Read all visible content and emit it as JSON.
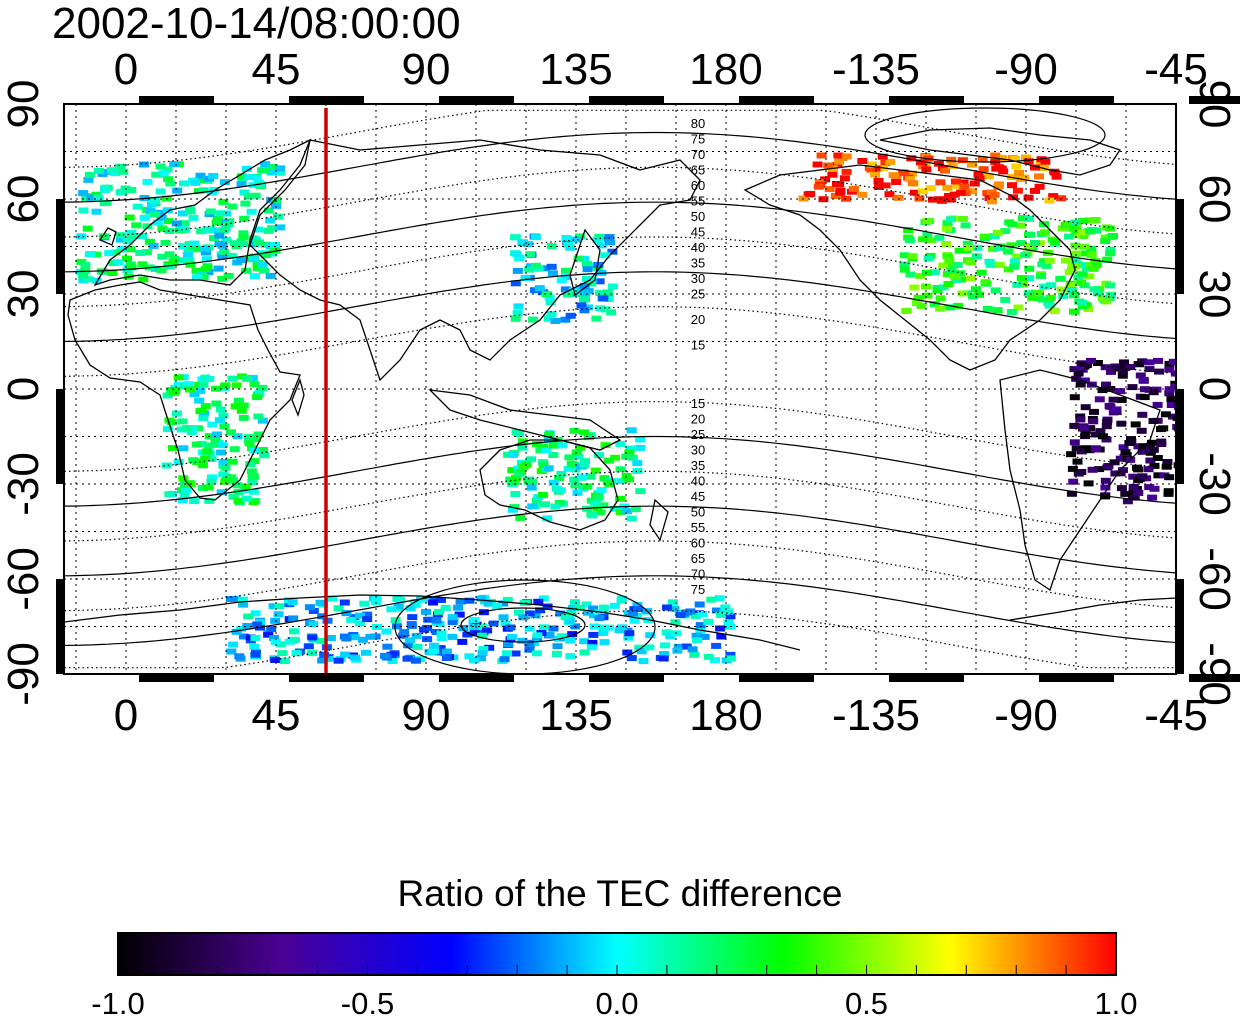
{
  "title": "2002-10-14/08:00:00",
  "colorbar": {
    "label": "Ratio of the TEC difference",
    "ticks": [
      "-1.0",
      "-0.5",
      "0.0",
      "0.5",
      "1.0"
    ],
    "stops": [
      "#000000",
      "#4b0096",
      "#0000ff",
      "#00ffff",
      "#00ff00",
      "#ffff00",
      "#ff0000"
    ]
  },
  "map": {
    "lon_ticks": [
      "0",
      "45",
      "90",
      "135",
      "180",
      "-135",
      "-90",
      "-45"
    ],
    "lat_ticks": [
      "90",
      "60",
      "30",
      "0",
      "-30",
      "-60",
      "-90"
    ],
    "marker_longitude": 60,
    "marker_color": "#cc0000",
    "contour_labels_north": [
      "80",
      "75",
      "70",
      "65",
      "60",
      "55",
      "50",
      "45",
      "40",
      "35",
      "30",
      "25",
      "20",
      "15"
    ],
    "contour_labels_south": [
      "15",
      "20",
      "25",
      "30",
      "35",
      "40",
      "45",
      "50",
      "55",
      "60",
      "65",
      "70",
      "75"
    ],
    "data_regions": [
      {
        "name": "europe",
        "lon": [
          -15,
          45
        ],
        "lat": [
          35,
          72
        ],
        "ratio": 0.1
      },
      {
        "name": "east-asia",
        "lon": [
          115,
          145
        ],
        "lat": [
          22,
          50
        ],
        "ratio": 0.0
      },
      {
        "name": "north-america",
        "lon": [
          -128,
          -65
        ],
        "lat": [
          25,
          55
        ],
        "ratio": 0.3
      },
      {
        "name": "arctic-canada",
        "lon": [
          -160,
          -80
        ],
        "lat": [
          60,
          75
        ],
        "ratio": 0.95
      },
      {
        "name": "australia",
        "lon": [
          113,
          153
        ],
        "lat": [
          -40,
          -12
        ],
        "ratio": 0.15
      },
      {
        "name": "south-america",
        "lon": [
          -78,
          -40
        ],
        "lat": [
          -35,
          10
        ],
        "ratio": -0.85
      },
      {
        "name": "africa",
        "lon": [
          10,
          40
        ],
        "lat": [
          -35,
          5
        ],
        "ratio": 0.15
      },
      {
        "name": "antarctica",
        "lon": [
          30,
          180
        ],
        "lat": [
          -85,
          -65
        ],
        "ratio": -0.1
      }
    ]
  }
}
